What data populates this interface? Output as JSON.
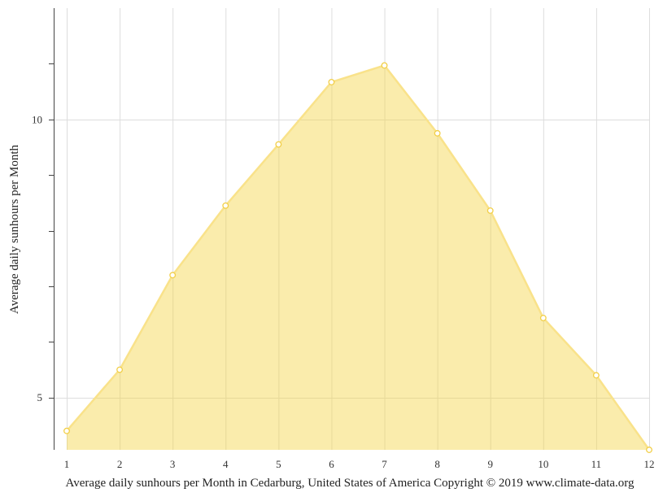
{
  "chart_data": {
    "type": "area",
    "xlabel": "Average daily sunhours per Month in Cedarburg, United States of America Copyright © 2019 www.climate-data.org",
    "ylabel": "Average daily sunhours per Month",
    "x": [
      1,
      2,
      3,
      4,
      5,
      6,
      7,
      8,
      9,
      10,
      11,
      12
    ],
    "x_tick_labels": [
      "1",
      "2",
      "3",
      "4",
      "5",
      "6",
      "7",
      "8",
      "9",
      "10",
      "11",
      "12"
    ],
    "y_tick_labels": [
      "5",
      "10"
    ],
    "series": [
      {
        "values": [
          4.4,
          5.5,
          7.2,
          8.45,
          9.55,
          10.67,
          10.97,
          9.75,
          8.36,
          6.43,
          5.4,
          4.06
        ]
      }
    ],
    "ylim": [
      4.06,
      12.0
    ],
    "y_major_ticks": [
      5,
      10
    ],
    "y_minor_ticks": [
      6,
      7,
      8,
      9,
      11
    ],
    "grid": true,
    "colors": {
      "fill": "#f5d547",
      "line": "#f9e28a",
      "point_stroke": "#f2cf48",
      "grid": "#dddddd",
      "axis": "#444444"
    }
  }
}
